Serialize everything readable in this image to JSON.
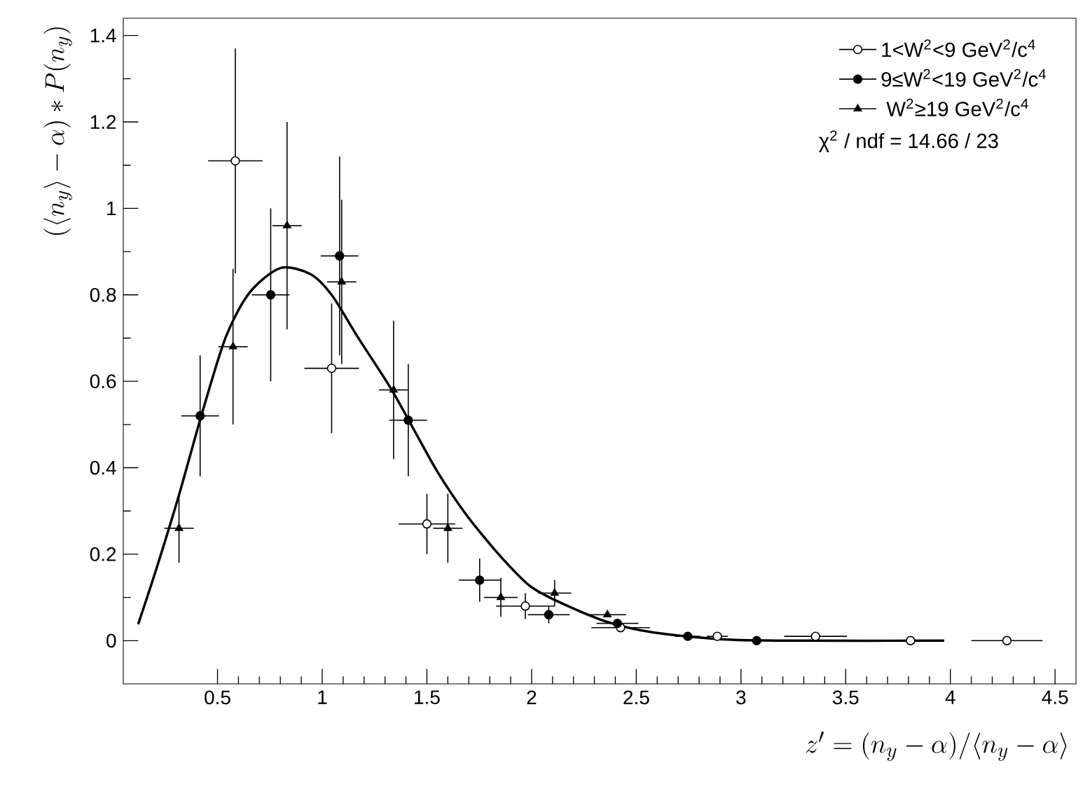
{
  "chart_data": {
    "type": "scatter",
    "xlabel": "z' = (n_y - \\alpha) / \\langle n_y - \\alpha \\rangle",
    "ylabel": "(\\langle n_y \\rangle - \\alpha) * P(n_y)",
    "xlim": [
      0.05,
      4.6
    ],
    "ylim": [
      -0.1,
      1.44
    ],
    "xticks": [
      0.5,
      1,
      1.5,
      2,
      2.5,
      3,
      3.5,
      4,
      4.5
    ],
    "yticks": [
      0,
      0.2,
      0.4,
      0.6,
      0.8,
      1,
      1.2,
      1.4
    ],
    "legend": "top right",
    "grid": false,
    "annotations": [
      "χ$^{2}$ / ndf =  14.66 / 23"
    ],
    "series": [
      {
        "name": "1<W$^{2}$<9 GeV$^{2}$/c$^{4}$",
        "color": "#ffffff",
        "marker": "circle",
        "x": [
          0.585,
          1.045,
          1.5,
          1.97,
          2.425,
          2.887,
          3.356,
          3.81,
          4.27
        ],
        "values": [
          1.11,
          0.63,
          0.27,
          0.08,
          0.03,
          0.01,
          0.01,
          0,
          0
        ],
        "errors": [
          0.26,
          0.15,
          0.07,
          0.03,
          null,
          null,
          null,
          null,
          null
        ],
        "xerrors": [
          0.13,
          0.13,
          0.135,
          0.14,
          0.14,
          0.05,
          0.15,
          0.16,
          0.17
        ]
      },
      {
        "name": "9≤W$^{2}$<19 GeV$^{2}$/c$^{4}$",
        "color": "#000000",
        "marker": "circle",
        "x": [
          0.417,
          0.754,
          1.083,
          1.411,
          1.752,
          2.082,
          2.41,
          2.746,
          3.075
        ],
        "values": [
          0.52,
          0.8,
          0.89,
          0.51,
          0.14,
          0.06,
          0.04,
          0.01,
          0
        ],
        "errors": [
          0.14,
          0.2,
          0.23,
          0.13,
          0.05,
          0.02,
          null,
          null,
          null
        ],
        "xerrors": [
          0.09,
          0.09,
          0.09,
          0.09,
          0.1,
          0.1,
          0.1,
          0.06,
          0.1
        ]
      },
      {
        "name": " W$^{2}$≥19 GeV$^{2}$/c$^{4}$",
        "color": "#000000",
        "marker": "triangle",
        "x": [
          0.316,
          0.574,
          0.832,
          1.093,
          1.341,
          1.6,
          1.853,
          2.11,
          2.362
        ],
        "values": [
          0.26,
          0.68,
          0.96,
          0.83,
          0.58,
          0.26,
          0.1,
          0.11,
          0.06
        ],
        "errors": [
          0.08,
          0.18,
          0.24,
          0.19,
          0.16,
          0.08,
          0.045,
          0.03,
          null
        ],
        "xerrors": [
          0.07,
          0.07,
          0.07,
          0.07,
          0.07,
          0.07,
          0.08,
          0.08,
          0.09
        ]
      },
      {
        "type": "line",
        "color": "#000000",
        "x": [
          0.121,
          0.204,
          0.316,
          0.429,
          0.54,
          0.653,
          0.8,
          0.944,
          1.045,
          1.169,
          1.326,
          1.438,
          1.55,
          1.684,
          1.819,
          1.909,
          1.999,
          2.133,
          2.357,
          2.58,
          2.92,
          3.27,
          3.97
        ],
        "values": [
          0.038,
          0.16,
          0.337,
          0.531,
          0.703,
          0.805,
          0.862,
          0.848,
          0.8,
          0.703,
          0.585,
          0.488,
          0.391,
          0.294,
          0.213,
          0.165,
          0.124,
          0.089,
          0.044,
          0.019,
          0.003,
          0,
          0
        ]
      }
    ]
  }
}
